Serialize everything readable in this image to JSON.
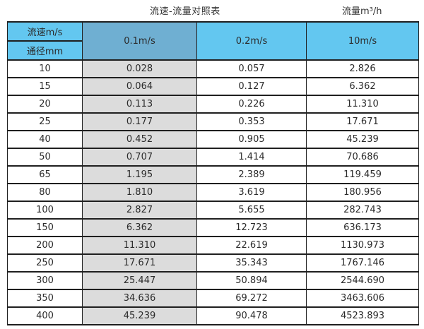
{
  "page_title": {
    "main": "流速-流量对照表",
    "unit": "流量m³/h"
  },
  "table": {
    "corner_top": "流速m/s",
    "corner_bottom": "通径mm",
    "columns": [
      "0.1m/s",
      "0.2m/s",
      "10m/s"
    ],
    "rows": [
      [
        "10",
        "0.028",
        "0.057",
        "2.826"
      ],
      [
        "15",
        "0.064",
        "0.127",
        "6.362"
      ],
      [
        "20",
        "0.113",
        "0.226",
        "11.310"
      ],
      [
        "25",
        "0.177",
        "0.353",
        "17.671"
      ],
      [
        "40",
        "0.452",
        "0.905",
        "45.239"
      ],
      [
        "50",
        "0.707",
        "1.414",
        "70.686"
      ],
      [
        "65",
        "1.195",
        "2.389",
        "119.459"
      ],
      [
        "80",
        "1.810",
        "3.619",
        "180.956"
      ],
      [
        "100",
        "2.827",
        "5.655",
        "282.743"
      ],
      [
        "150",
        "6.362",
        "12.723",
        "636.173"
      ],
      [
        "200",
        "11.310",
        "22.619",
        "1130.973"
      ],
      [
        "250",
        "17.671",
        "35.343",
        "1767.146"
      ],
      [
        "300",
        "25.447",
        "50.894",
        "2544.690"
      ],
      [
        "350",
        "34.636",
        "69.272",
        "3463.606"
      ],
      [
        "400",
        "45.239",
        "90.478",
        "4523.893"
      ]
    ]
  },
  "colors": {
    "header_light_blue": "#63c7f0",
    "header_muted_blue": "#6fafd2",
    "first_value_column_gray": "#dcdcdc",
    "border_dark": "#1f1f1f",
    "text_dark": "#2b2b2b"
  },
  "chart_data": {
    "type": "table",
    "title": "流速-流量对照表",
    "unit_label": "流量m³/h",
    "row_header": "通径mm",
    "col_header": "流速m/s",
    "columns": [
      "0.1m/s",
      "0.2m/s",
      "10m/s"
    ],
    "diameters_mm": [
      10,
      15,
      20,
      25,
      40,
      50,
      65,
      80,
      100,
      150,
      200,
      250,
      300,
      350,
      400
    ],
    "series": [
      {
        "name": "0.1m/s",
        "values": [
          0.028,
          0.064,
          0.113,
          0.177,
          0.452,
          0.707,
          1.195,
          1.81,
          2.827,
          6.362,
          11.31,
          17.671,
          25.447,
          34.636,
          45.239
        ]
      },
      {
        "name": "0.2m/s",
        "values": [
          0.057,
          0.127,
          0.226,
          0.353,
          0.905,
          1.414,
          2.389,
          3.619,
          5.655,
          12.723,
          22.619,
          35.343,
          50.894,
          69.272,
          90.478
        ]
      },
      {
        "name": "10m/s",
        "values": [
          2.826,
          6.362,
          11.31,
          17.671,
          45.239,
          70.686,
          119.459,
          180.956,
          282.743,
          636.173,
          1130.973,
          1767.146,
          2544.69,
          3463.606,
          4523.893
        ]
      }
    ]
  }
}
